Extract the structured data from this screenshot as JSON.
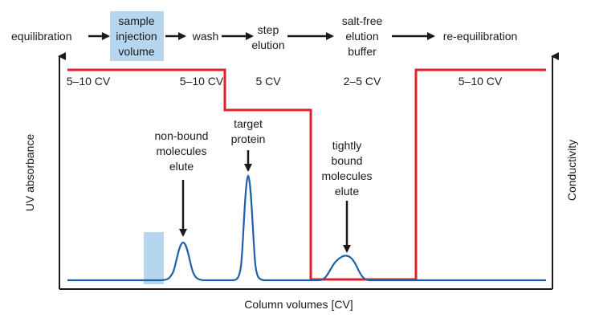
{
  "steps": {
    "equilibration": "equilibration",
    "sample_injection": [
      "sample",
      "injection",
      "volume"
    ],
    "wash": "wash",
    "step_elution": [
      "step",
      "elution"
    ],
    "salt_free": [
      "salt-free",
      "elution",
      "buffer"
    ],
    "re_equilibration": "re-equilibration"
  },
  "volumes": [
    "5–10 CV",
    "5–10 CV",
    "5 CV",
    "2–5 CV",
    "5–10 CV"
  ],
  "annotations": {
    "non_bound": [
      "non-bound",
      "molecules",
      "elute"
    ],
    "target": [
      "target",
      "protein"
    ],
    "tightly_bound": [
      "tightly",
      "bound",
      "molecules",
      "elute"
    ]
  },
  "axes": {
    "x_label": "Column volumes [CV]",
    "y_left_label": "UV absorbance",
    "y_right_label": "Conductivity"
  },
  "colors": {
    "uv_trace": "#1f5fa8",
    "conductivity_trace": "#e3202a",
    "injection_highlight": "#b6d5ee",
    "axis": "#1a1a1a"
  }
}
